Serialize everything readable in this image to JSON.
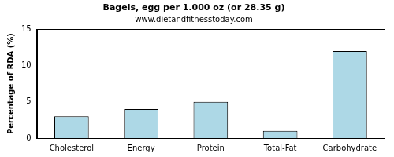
{
  "chart_data": {
    "type": "bar",
    "title": "Bagels, egg per 1.000 oz (or 28.35 g)",
    "subtitle": "www.dietandfitnesstoday.com",
    "y_label": "Percentage of RDA (%)",
    "categories": [
      "Cholesterol",
      "Energy",
      "Protein",
      "Total-Fat",
      "Carbohydrate"
    ],
    "values": [
      3,
      4,
      5,
      1,
      12
    ],
    "color": "#add8e6",
    "ylim": [
      0,
      15
    ],
    "yticks": [
      0,
      5,
      10,
      15
    ],
    "grid": false
  }
}
